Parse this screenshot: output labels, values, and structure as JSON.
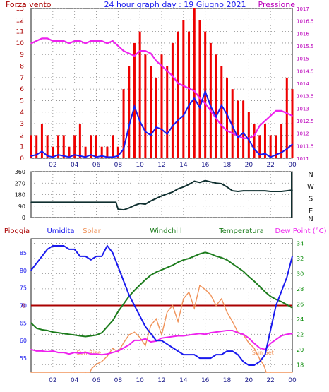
{
  "header": {
    "left_label": "Forza vento",
    "title": "24 hour graph day : 19 Giugno 2021",
    "right_label": "Pressione"
  },
  "colors": {
    "frame": "#1c1c1c",
    "wind": "#ee0000",
    "wind_avg": "#1a1aee",
    "pressure": "#ee22ee",
    "direction": "#0f2f2f",
    "humidity": "#1a1aee",
    "solar": "#f0935a",
    "temperature": "#1c7c1c",
    "dewpoint": "#ee22ee",
    "rain": "#aa0000",
    "axis_left_panel1": "#aa0000",
    "axis_right_panel1": "#bb00bb",
    "axis_left_panel3": "#1a1aee",
    "axis_right_panel3": "#008800",
    "grid": "#888888"
  },
  "chart_data": [
    {
      "type": "line",
      "title": "24 hour graph day : 19 Giugno 2021",
      "x_ticks": [
        "02",
        "04",
        "06",
        "08",
        "10",
        "12",
        "14",
        "16",
        "18",
        "20",
        "22",
        "00"
      ],
      "x_range_hours": [
        0,
        24
      ],
      "grid": true,
      "left_axis": {
        "label": "Forza vento",
        "ticks": [
          "0",
          "1",
          "2",
          "3",
          "4",
          "5",
          "6",
          "7",
          "8",
          "9",
          "10",
          "11",
          "12",
          "13"
        ],
        "range": [
          0,
          13
        ]
      },
      "right_axis": {
        "label": "Pressione",
        "ticks": [
          "1011",
          "1011.5",
          "1012",
          "1012.5",
          "1013",
          "1013.5",
          "1014",
          "1014.5",
          "1015",
          "1015.5",
          "1016",
          "1016.5",
          "1017"
        ],
        "range": [
          1011,
          1017
        ]
      },
      "series": [
        {
          "name": "Pressione",
          "axis": "right",
          "x": [
            0,
            0.5,
            1,
            1.5,
            2,
            2.5,
            3,
            3.5,
            4,
            4.5,
            5,
            5.5,
            6,
            6.5,
            7,
            7.5,
            8,
            8.5,
            9,
            9.5,
            10,
            10.5,
            11,
            11.5,
            12,
            12.5,
            13,
            13.5,
            14,
            14.5,
            15,
            15.5,
            16,
            16.5,
            17,
            17.5,
            18,
            18.5,
            19,
            19.5,
            20,
            20.5,
            21,
            21.5,
            22,
            22.5,
            23,
            23.5,
            24
          ],
          "y": [
            1015.6,
            1015.7,
            1015.8,
            1015.8,
            1015.7,
            1015.7,
            1015.7,
            1015.6,
            1015.7,
            1015.7,
            1015.6,
            1015.7,
            1015.7,
            1015.7,
            1015.6,
            1015.7,
            1015.5,
            1015.3,
            1015.2,
            1015.1,
            1015.3,
            1015.3,
            1015.2,
            1014.9,
            1014.7,
            1014.5,
            1014.3,
            1014.0,
            1013.9,
            1013.8,
            1013.7,
            1013.4,
            1013.2,
            1012.9,
            1012.6,
            1012.3,
            1012.1,
            1012.0,
            1011.9,
            1011.8,
            1011.8,
            1011.9,
            1012.3,
            1012.5,
            1012.7,
            1012.9,
            1012.9,
            1012.8,
            1012.7
          ]
        },
        {
          "name": "Media vento",
          "axis": "left",
          "x": [
            0,
            0.5,
            1,
            1.5,
            2,
            2.5,
            3,
            3.5,
            4,
            4.5,
            5,
            5.5,
            6,
            6.5,
            7,
            7.5,
            8,
            8.5,
            9,
            9.5,
            10,
            10.5,
            11,
            11.5,
            12,
            12.5,
            13,
            13.5,
            14,
            14.5,
            15,
            15.5,
            16,
            16.5,
            17,
            17.5,
            18,
            18.5,
            19,
            19.5,
            20,
            20.5,
            21,
            21.5,
            22,
            22.5,
            23,
            23.5,
            24
          ],
          "y": [
            0.2,
            0.3,
            0.6,
            0.2,
            0.1,
            0.3,
            0.2,
            0.1,
            0.3,
            0.2,
            0.1,
            0.3,
            0.1,
            0.2,
            0.1,
            0.1,
            0.2,
            0.8,
            2.8,
            4.5,
            3.2,
            2.3,
            2.0,
            2.7,
            2.5,
            2.1,
            2.8,
            3.3,
            3.7,
            4.6,
            5.2,
            4.4,
            5.8,
            4.5,
            3.6,
            4.6,
            3.8,
            2.8,
            1.8,
            2.2,
            1.6,
            0.8,
            0.3,
            0.4,
            0.1,
            0.3,
            0.5,
            0.8,
            1.2
          ]
        },
        {
          "name": "Forza vento",
          "axis": "left",
          "style": "spikes",
          "x": [
            0,
            0.5,
            1,
            1.5,
            2,
            2.5,
            3,
            3.5,
            4,
            4.5,
            5,
            5.5,
            6,
            6.5,
            7,
            7.5,
            8,
            8.5,
            9,
            9.5,
            10,
            10.5,
            11,
            11.5,
            12,
            12.5,
            13,
            13.5,
            14,
            14.5,
            15,
            15.5,
            16,
            16.5,
            17,
            17.5,
            18,
            18.5,
            19,
            19.5,
            20,
            20.5,
            21,
            21.5,
            22,
            22.5,
            23,
            23.5,
            24
          ],
          "y": [
            2,
            2,
            3,
            2,
            1,
            2,
            2,
            1,
            2,
            3,
            1,
            2,
            2,
            1,
            1,
            2,
            1,
            6,
            8,
            10,
            11,
            9,
            8,
            7,
            9,
            8,
            10,
            11,
            12,
            11,
            13,
            12,
            11,
            10,
            9,
            8,
            7,
            6,
            5,
            5,
            4,
            3,
            2,
            3,
            2,
            2,
            3,
            7,
            6
          ]
        }
      ]
    },
    {
      "type": "line",
      "title": "",
      "x_range_hours": [
        0,
        24
      ],
      "grid": true,
      "left_axis": {
        "label": "",
        "ticks": [
          "0",
          "90",
          "180",
          "270",
          "360"
        ],
        "range": [
          0,
          360
        ]
      },
      "right_axis": {
        "label": "",
        "ticks": [
          "N",
          "W",
          "S",
          "E",
          "N"
        ]
      },
      "series": [
        {
          "name": "Direzione",
          "x": [
            0,
            1,
            2,
            3,
            4,
            5,
            6,
            7,
            7.8,
            8,
            8.5,
            9,
            9.5,
            10,
            10.5,
            11,
            11.5,
            12,
            12.5,
            13,
            13.5,
            14,
            14.5,
            15,
            15.5,
            16,
            16.5,
            17,
            17.5,
            18,
            18.5,
            19,
            19.5,
            20,
            20.5,
            21,
            21.5,
            22,
            22.5,
            23,
            23.5,
            24
          ],
          "y": [
            120,
            120,
            120,
            120,
            120,
            120,
            120,
            120,
            120,
            65,
            60,
            75,
            95,
            110,
            105,
            130,
            150,
            170,
            185,
            200,
            225,
            240,
            260,
            285,
            275,
            290,
            280,
            270,
            265,
            240,
            210,
            205,
            210,
            210,
            210,
            210,
            210,
            205,
            205,
            205,
            210,
            215
          ]
        }
      ]
    },
    {
      "type": "line",
      "title": "",
      "x_ticks": [
        "02",
        "04",
        "06",
        "08",
        "10",
        "12",
        "14",
        "16",
        "18",
        "20",
        "22",
        "00"
      ],
      "x_range_hours": [
        0,
        24
      ],
      "grid": true,
      "legend": [
        "Pioggia",
        "Umidita",
        "Solar",
        "Windchill",
        "Temperatura",
        "Dew Point (°C)"
      ],
      "left_axis": {
        "label": "Umidita",
        "ticks": [
          "55",
          "60",
          "65",
          "70",
          "75",
          "80",
          "85"
        ],
        "range": [
          51,
          89
        ]
      },
      "rain_axis": {
        "label": "Pioggia",
        "ticks": [
          "0"
        ],
        "value": 0
      },
      "right_axis": {
        "label": "Temperatura",
        "ticks": [
          "18",
          "20",
          "22",
          "24",
          "26",
          "28",
          "30",
          "32",
          "34"
        ],
        "range": [
          17,
          34.6
        ]
      },
      "annotations": [
        "Sun Rise",
        "Sun Set"
      ],
      "series": [
        {
          "name": "Umidita",
          "axis": "left",
          "x": [
            0,
            0.5,
            1,
            1.5,
            2,
            2.5,
            3,
            3.5,
            4,
            4.5,
            5,
            5.5,
            6,
            6.5,
            7,
            7.5,
            8,
            8.5,
            9,
            9.5,
            10,
            10.5,
            11,
            11.5,
            12,
            12.5,
            13,
            13.5,
            14,
            14.5,
            15,
            15.5,
            16,
            16.5,
            17,
            17.5,
            18,
            18.5,
            19,
            19.5,
            20,
            20.5,
            21,
            21.5,
            22,
            22.5,
            23,
            23.5,
            24
          ],
          "y": [
            80,
            82,
            84,
            86,
            87,
            87,
            87,
            86,
            86,
            84,
            84,
            83,
            84,
            84,
            87,
            85,
            81,
            77,
            73,
            70,
            67,
            64,
            62,
            60,
            60,
            59,
            58,
            57,
            56,
            56,
            56,
            55,
            55,
            55,
            56,
            56,
            57,
            57,
            56,
            54,
            53,
            53,
            54,
            56,
            63,
            70,
            74,
            78,
            84
          ]
        },
        {
          "name": "Temperatura",
          "axis": "right",
          "x": [
            0,
            0.5,
            1,
            1.5,
            2,
            2.5,
            3,
            3.5,
            4,
            4.5,
            5,
            5.5,
            6,
            6.5,
            7,
            7.5,
            8,
            8.5,
            9,
            9.5,
            10,
            10.5,
            11,
            11.5,
            12,
            12.5,
            13,
            13.5,
            14,
            14.5,
            15,
            15.5,
            16,
            16.5,
            17,
            17.5,
            18,
            18.5,
            19,
            19.5,
            20,
            20.5,
            21,
            21.5,
            22,
            22.5,
            23,
            23.5,
            24
          ],
          "y": [
            23.5,
            22.8,
            22.6,
            22.5,
            22.3,
            22.2,
            22.1,
            22.0,
            21.9,
            21.8,
            21.7,
            21.8,
            21.9,
            22.2,
            23.0,
            23.8,
            25.0,
            26.0,
            27.0,
            27.8,
            28.5,
            29.2,
            29.8,
            30.2,
            30.5,
            30.8,
            31.1,
            31.5,
            31.8,
            32.0,
            32.3,
            32.6,
            32.8,
            32.6,
            32.3,
            32.1,
            31.8,
            31.3,
            30.8,
            30.3,
            29.6,
            29.0,
            28.3,
            27.6,
            27.0,
            26.6,
            26.3,
            25.9,
            25.5
          ]
        },
        {
          "name": "Dew Point (°C)",
          "axis": "right",
          "x": [
            0,
            0.5,
            1,
            1.5,
            2,
            2.5,
            3,
            3.5,
            4,
            4.5,
            5,
            5.5,
            6,
            6.5,
            7,
            7.5,
            8,
            8.5,
            9,
            9.5,
            10,
            10.5,
            11,
            11.5,
            12,
            12.5,
            13,
            13.5,
            14,
            14.5,
            15,
            15.5,
            16,
            16.5,
            17,
            17.5,
            18,
            18.5,
            19,
            19.5,
            20,
            20.5,
            21,
            21.5,
            22,
            22.5,
            23,
            23.5,
            24
          ],
          "y": [
            20.0,
            19.8,
            19.8,
            19.7,
            19.8,
            19.6,
            19.6,
            19.4,
            19.6,
            19.5,
            19.6,
            19.4,
            19.4,
            19.3,
            19.4,
            19.6,
            19.8,
            20.2,
            20.6,
            21.2,
            21.2,
            21.4,
            21.0,
            21.1,
            21.5,
            21.6,
            21.7,
            21.8,
            21.8,
            21.9,
            22.0,
            22.1,
            22.0,
            22.2,
            22.3,
            22.4,
            22.5,
            22.5,
            22.2,
            22.0,
            21.5,
            20.8,
            20.2,
            20.0,
            20.8,
            21.3,
            21.8,
            22.0,
            22.1
          ]
        },
        {
          "name": "Solar",
          "axis": "solar",
          "x": [
            0,
            4,
            5,
            5.4,
            5.6,
            6,
            6.5,
            7,
            7.5,
            8,
            8.5,
            9,
            9.5,
            10,
            10.5,
            11,
            11.5,
            12,
            12.5,
            13,
            13.5,
            14,
            14.5,
            15,
            15.5,
            16,
            16.5,
            17,
            17.5,
            18,
            18.5,
            19,
            19.5,
            20,
            20.5,
            21,
            21.4,
            21.6,
            22,
            24
          ],
          "y": [
            0,
            0,
            0,
            0,
            3,
            6,
            8,
            12,
            18,
            15,
            22,
            28,
            30,
            26,
            20,
            35,
            40,
            28,
            45,
            50,
            38,
            55,
            60,
            48,
            65,
            62,
            58,
            50,
            55,
            45,
            38,
            30,
            28,
            22,
            18,
            10,
            5,
            0,
            0,
            0
          ]
        },
        {
          "name": "Pioggia",
          "axis": "rain",
          "x": [
            0,
            24
          ],
          "y": [
            0,
            0
          ]
        }
      ]
    }
  ]
}
